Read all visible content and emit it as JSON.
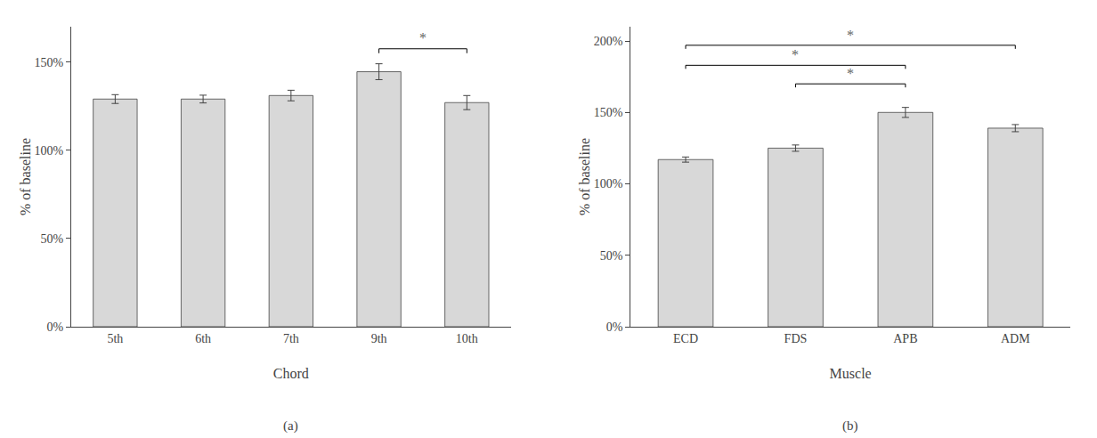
{
  "chart_data": [
    {
      "type": "bar",
      "title": "(a)",
      "categories": [
        "5th",
        "6th",
        "7th",
        "9th",
        "10th"
      ],
      "values": [
        1.29,
        1.29,
        1.31,
        1.445,
        1.27
      ],
      "errors": [
        0.025,
        0.022,
        0.03,
        0.045,
        0.04
      ],
      "color": "#d8d8d8",
      "xlabel": "Chord",
      "ylabel": "% of baseline",
      "ylim": [
        0,
        1.7
      ],
      "yticks": [
        {
          "value": 0,
          "label": "0%"
        },
        {
          "value": 0.5,
          "label": "50%"
        },
        {
          "value": 1.0,
          "label": "100%"
        },
        {
          "value": 1.5,
          "label": "150%"
        }
      ],
      "grid": false,
      "annotations": [
        {
          "text": "*",
          "from": "9th",
          "to": "10th",
          "y": 1.575
        }
      ]
    },
    {
      "type": "bar",
      "title": "(b)",
      "categories": [
        "ECD",
        "FDS",
        "APB",
        "ADM"
      ],
      "values": [
        1.17,
        1.25,
        1.5,
        1.39
      ],
      "errors": [
        0.018,
        0.022,
        0.035,
        0.025
      ],
      "color": "#d8d8d8",
      "xlabel": "Muscle",
      "ylabel": "% of baseline",
      "ylim": [
        0,
        2.1
      ],
      "yticks": [
        {
          "value": 0,
          "label": "0%"
        },
        {
          "value": 0.5,
          "label": "50%"
        },
        {
          "value": 1.0,
          "label": "100%"
        },
        {
          "value": 1.5,
          "label": "150%"
        },
        {
          "value": 2.0,
          "label": "200%"
        }
      ],
      "grid": false,
      "annotations": [
        {
          "text": "*",
          "from": "ECD",
          "to": "ADM",
          "y": 1.97
        },
        {
          "text": "*",
          "from": "ECD",
          "to": "APB",
          "y": 1.83
        },
        {
          "text": "*",
          "from": "FDS",
          "to": "APB",
          "y": 1.7
        }
      ]
    }
  ]
}
